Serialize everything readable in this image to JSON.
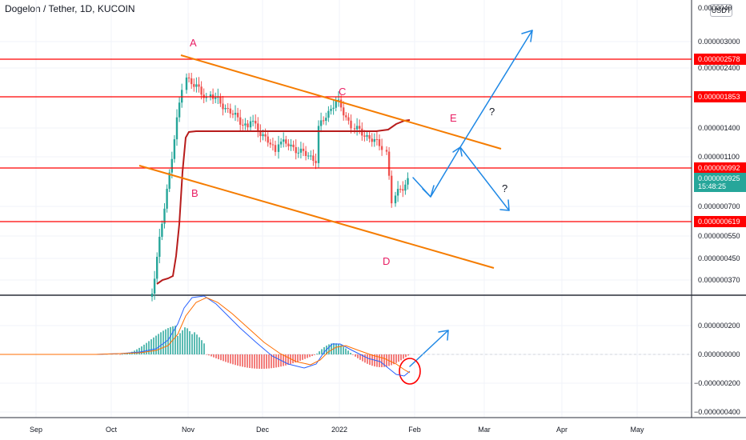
{
  "title": "Dogelon / Tether, 1D, KUCOIN",
  "currency_button": "USDT",
  "chart_data": [
    {
      "type": "candlestick",
      "price_ticks": [
        "0.000003000",
        "0.000002400",
        "0.000001400",
        "0.000001100",
        "0.000000700",
        "0.000000550",
        "0.000000450",
        "0.000000370"
      ],
      "top_partial_label": "0.0000040",
      "level_labels": [
        "0.000002578",
        "0.000001853",
        "0.000000992",
        "0.000000619"
      ],
      "current_price": "0.000000925",
      "countdown": "15:48:25",
      "x_labels": [
        "Sep",
        "Oct",
        "Nov",
        "Dec",
        "2022",
        "Feb",
        "Mar",
        "Apr",
        "May"
      ],
      "annotations": [
        "A",
        "B",
        "C",
        "D",
        "E",
        "?",
        "?"
      ],
      "colors": {
        "up": "#26a69a",
        "down": "#ef5350",
        "level": "#ff0000",
        "trend": "#f57c00",
        "ma": "#b71c1c",
        "arrow": "#1e88e5",
        "letters": "#e91e63"
      }
    },
    {
      "type": "macd",
      "y_ticks": [
        "0.000000200",
        "0.000000000",
        "−0.000000200",
        "−0.000000400"
      ],
      "colors": {
        "macd": "#2962ff",
        "signal": "#ff6d00",
        "hist_up": "#26a69a",
        "hist_down": "#ef5350"
      }
    }
  ]
}
